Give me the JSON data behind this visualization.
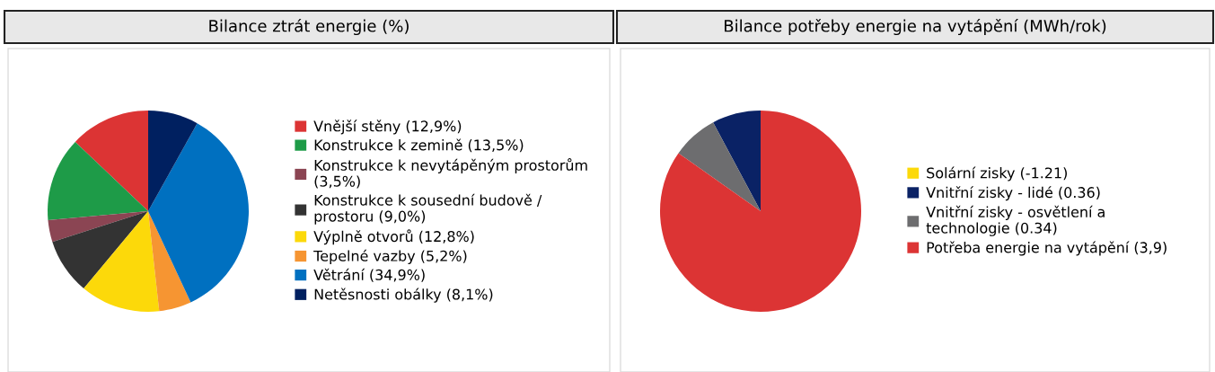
{
  "chart_data": [
    {
      "type": "pie",
      "title": "Bilance ztrát energie (%)",
      "legend": "right",
      "categories": [
        "Vnější stěny (12,9%)",
        "Konstrukce k zemině (13,5%)",
        "Konstrukce k nevytápěným prostorům\n(3,5%)",
        "Konstrukce k sousední budově /\nprostoru (9,0%)",
        "Výplně otvorů (12,8%)",
        "Tepelné vazby (5,2%)",
        "Větrání (34,9%)",
        "Netěsnosti obálky (8,1%)"
      ],
      "values": [
        12.9,
        13.5,
        3.5,
        9.0,
        12.8,
        5.2,
        34.9,
        8.1
      ],
      "colors": [
        "#dc3434",
        "#1e9b48",
        "#8b4553",
        "#333333",
        "#fcd90a",
        "#f69532",
        "#0070c0",
        "#002060"
      ]
    },
    {
      "type": "pie",
      "title": "Bilance potřeby energie na vytápění (MWh/rok)",
      "legend": "right",
      "categories": [
        "Solární zisky (-1.21)",
        "Vnitřní zisky - lidé (0.36)",
        "Vnitřní zisky - osvětlení a\ntechnologie (0.34)",
        "Potřeba energie na vytápění (3,9)"
      ],
      "values": [
        null,
        0.36,
        0.34,
        3.9
      ],
      "colors": [
        "#fcd90a",
        "#0a2265",
        "#6d6d6f",
        "#dc3434"
      ]
    }
  ]
}
